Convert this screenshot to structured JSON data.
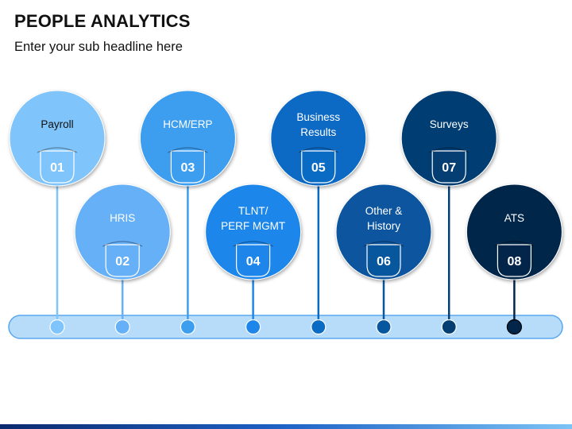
{
  "title": "PEOPLE ANALYTICS",
  "subtitle": "Enter your sub headline here",
  "items": [
    {
      "number": "01",
      "label": [
        "Payroll"
      ],
      "color": "#7fc4fb",
      "label_color": "#111111"
    },
    {
      "number": "02",
      "label": [
        "HRIS"
      ],
      "color": "#66b0f7",
      "label_color": "#ffffff"
    },
    {
      "number": "03",
      "label": [
        "HCM/ERP"
      ],
      "color": "#3d9ef0",
      "label_color": "#ffffff"
    },
    {
      "number": "04",
      "label": [
        "TLNT/",
        "PERF MGMT"
      ],
      "color": "#1e86ea",
      "label_color": "#ffffff"
    },
    {
      "number": "05",
      "label": [
        "Business",
        "Results"
      ],
      "color": "#0a6bc4",
      "label_color": "#ffffff"
    },
    {
      "number": "06",
      "label": [
        "Other &",
        "History"
      ],
      "color": "#07579f",
      "label_color": "#ffffff"
    },
    {
      "number": "07",
      "label": [
        "Surveys"
      ],
      "color": "#053e72",
      "label_color": "#ffffff"
    },
    {
      "number": "08",
      "label": [
        "ATS"
      ],
      "color": "#04254a",
      "label_color": "#ffffff"
    }
  ],
  "timeline": {
    "bar_color": "#b6dcfa",
    "bar_border": "#5aa7ef"
  }
}
